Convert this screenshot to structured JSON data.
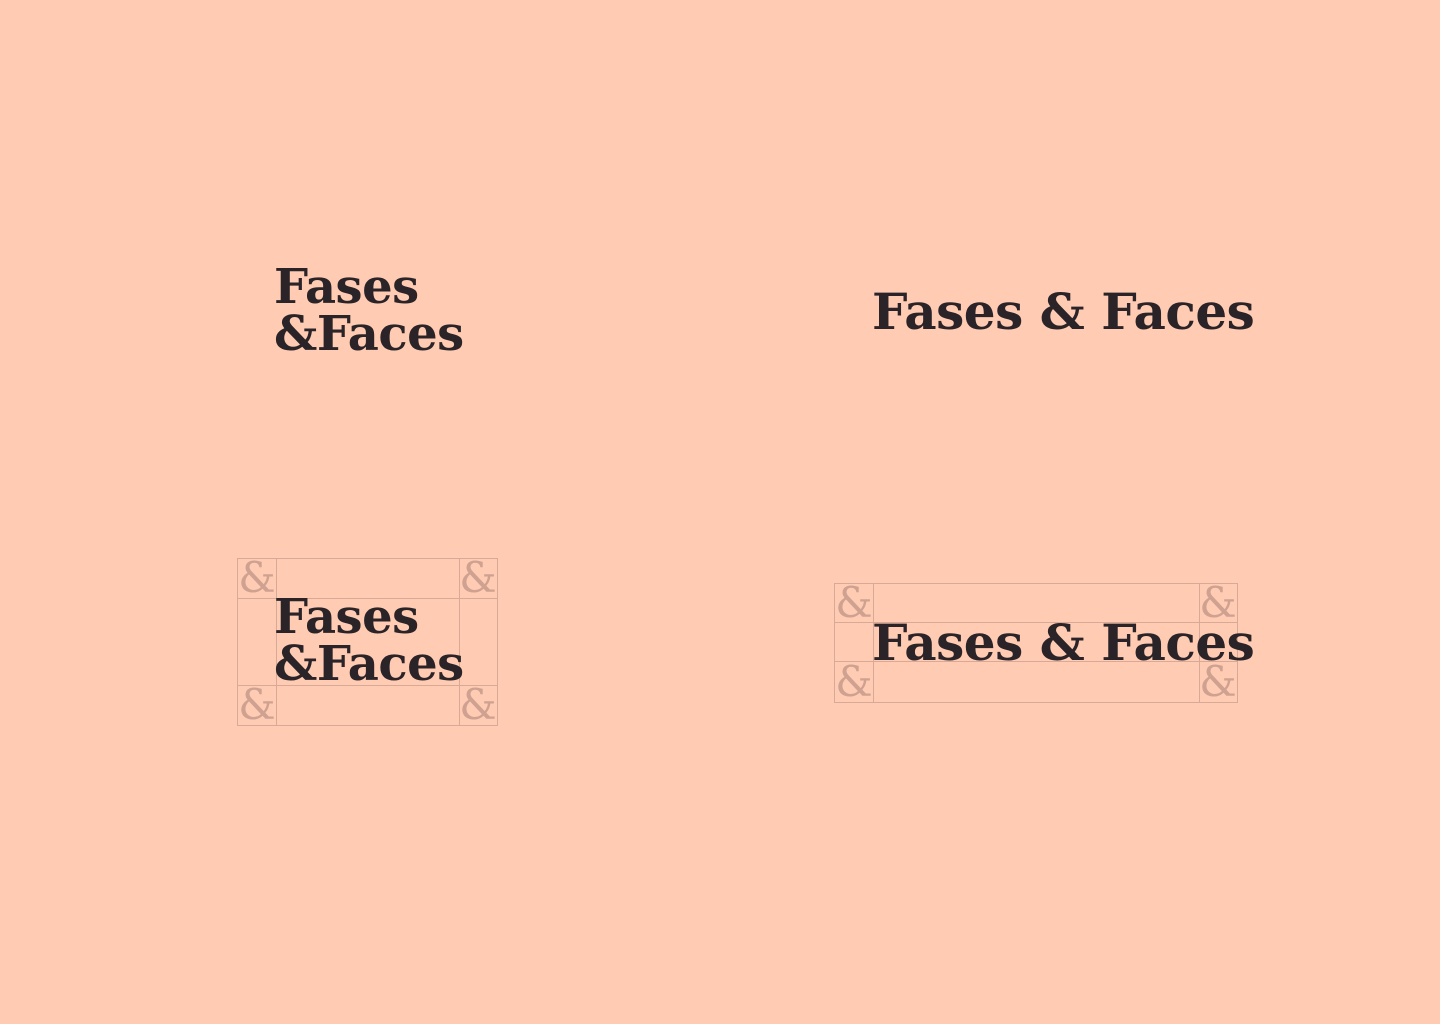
{
  "logos": {
    "stacked": {
      "line1": "Fases",
      "line2": "&Faces"
    },
    "inline": {
      "text": "Fases & Faces"
    },
    "clearspace_unit": "&"
  },
  "colors": {
    "background": "#FFCBB2",
    "logo": "#2A2328",
    "guide": "#D7A996"
  }
}
